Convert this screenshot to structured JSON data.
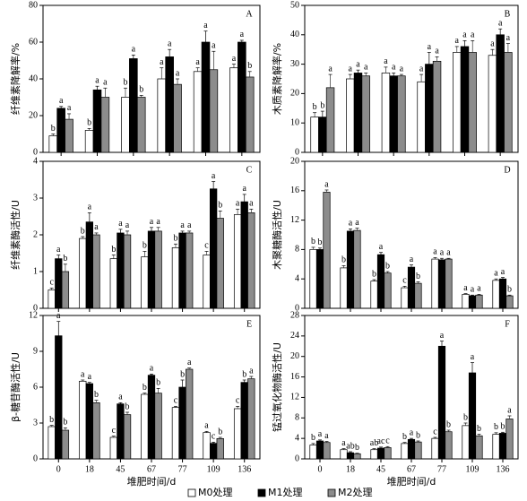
{
  "series_names": [
    "M0处理",
    "M1处理",
    "M2处理"
  ],
  "series_colors": [
    "#ffffff",
    "#000000",
    "#8c8c8c"
  ],
  "chart_data": [
    {
      "type": "bar",
      "panel": "A",
      "ylabel": "纤维素降解率/%",
      "ylim": [
        0,
        80
      ],
      "yticks": [
        0,
        20,
        40,
        60,
        80
      ],
      "categories": [
        null,
        null,
        null,
        null,
        null,
        null
      ],
      "series": [
        {
          "values": [
            9,
            12,
            30,
            40,
            44,
            46
          ],
          "errors": [
            1,
            1,
            5,
            6,
            2,
            2
          ],
          "letters": [
            "b",
            "b",
            "b",
            "a",
            "a",
            "a"
          ]
        },
        {
          "values": [
            24,
            34,
            51,
            52,
            60,
            60
          ],
          "errors": [
            1,
            2,
            2,
            4,
            6,
            1
          ],
          "letters": [
            "a",
            "a",
            "a",
            "a",
            "a",
            "a"
          ]
        },
        {
          "values": [
            18,
            30,
            30,
            37,
            45,
            41
          ],
          "errors": [
            3,
            5,
            1,
            3,
            10,
            3
          ],
          "letters": [
            "a",
            "a",
            "b",
            "a",
            "a",
            "b"
          ]
        }
      ]
    },
    {
      "type": "bar",
      "panel": "B",
      "ylabel": "木质素降解率/%",
      "ylim": [
        0,
        50
      ],
      "yticks": [
        0,
        10,
        20,
        30,
        40,
        50
      ],
      "categories": [
        null,
        null,
        null,
        null,
        null,
        null
      ],
      "series": [
        {
          "values": [
            12,
            25,
            27,
            24,
            34,
            33
          ],
          "errors": [
            1.5,
            1.5,
            2,
            2.5,
            2,
            2
          ],
          "letters": [
            "b",
            "a",
            "a",
            "a",
            "a",
            "a"
          ]
        },
        {
          "values": [
            12,
            27,
            26,
            30,
            36,
            40
          ],
          "errors": [
            2,
            1,
            1,
            4,
            2,
            2
          ],
          "letters": [
            "b",
            "a",
            "a",
            "a",
            "a",
            "a"
          ]
        },
        {
          "values": [
            22,
            26,
            26,
            31,
            34,
            34
          ],
          "errors": [
            4.5,
            1,
            0.5,
            1.5,
            4,
            3
          ],
          "letters": [
            "a",
            "a",
            "a",
            "a",
            "a",
            "a"
          ]
        }
      ]
    },
    {
      "type": "bar",
      "panel": "C",
      "ylabel": "纤维素酶活性/U",
      "ylim": [
        0,
        4
      ],
      "yticks": [
        0,
        1,
        2,
        3,
        4
      ],
      "categories": [
        null,
        null,
        null,
        null,
        null,
        null,
        null
      ],
      "series": [
        {
          "values": [
            0.5,
            1.9,
            1.35,
            1.4,
            1.65,
            1.45,
            2.55
          ],
          "errors": [
            0.05,
            0.05,
            0.1,
            0.15,
            0.1,
            0.1,
            0.15
          ],
          "letters": [
            "c",
            "b",
            "b",
            "b",
            "b",
            "c",
            "a"
          ]
        },
        {
          "values": [
            1.35,
            2.35,
            2.05,
            2.1,
            2.05,
            3.25,
            2.9
          ],
          "errors": [
            0.1,
            0.25,
            0.1,
            0.1,
            0.05,
            0.2,
            0.2
          ],
          "letters": [
            "a",
            "a",
            "a",
            "a",
            "a",
            "a",
            "a"
          ]
        },
        {
          "values": [
            1.0,
            2.0,
            2.0,
            2.1,
            2.05,
            2.45,
            2.6
          ],
          "errors": [
            0.2,
            0.05,
            0.1,
            0.1,
            0.05,
            0.2,
            0.1
          ],
          "letters": [
            "b",
            "a",
            "a",
            "a",
            "a",
            "b",
            "a"
          ]
        }
      ]
    },
    {
      "type": "bar",
      "panel": "D",
      "ylabel": "木聚糖酶活性/U",
      "ylim": [
        0,
        20
      ],
      "yticks": [
        0,
        4,
        8,
        12,
        16,
        20
      ],
      "categories": [
        null,
        null,
        null,
        null,
        null,
        null,
        null
      ],
      "series": [
        {
          "values": [
            8.0,
            5.5,
            3.7,
            2.8,
            6.7,
            1.9,
            3.8
          ],
          "errors": [
            0.3,
            0.3,
            0.2,
            0.2,
            0.2,
            0.1,
            0.2
          ],
          "letters": [
            "b",
            "b",
            "b",
            "c",
            "a",
            "a",
            "a"
          ]
        },
        {
          "values": [
            8.0,
            10.5,
            7.3,
            5.6,
            6.6,
            1.7,
            4.0
          ],
          "errors": [
            0.2,
            0.3,
            0.3,
            0.3,
            0.2,
            0.1,
            0.2
          ],
          "letters": [
            "b",
            "a",
            "a",
            "a",
            "a",
            "a",
            "a"
          ]
        },
        {
          "values": [
            15.8,
            10.6,
            4.8,
            3.4,
            6.7,
            1.8,
            1.7
          ],
          "errors": [
            0.3,
            0.3,
            0.2,
            0.2,
            0.1,
            0.1,
            0.1
          ],
          "letters": [
            "a",
            "a",
            "b",
            "b",
            "a",
            "a",
            "b"
          ]
        }
      ]
    },
    {
      "type": "bar",
      "panel": "E",
      "ylabel": "β-糖苷酶活性/U",
      "xlabel": "堆肥时间/d",
      "ylim": [
        0,
        12
      ],
      "yticks": [
        0,
        3,
        6,
        9,
        12
      ],
      "categories": [
        "0",
        "18",
        "45",
        "67",
        "77",
        "109",
        "136"
      ],
      "series": [
        {
          "values": [
            2.7,
            6.5,
            1.8,
            5.4,
            4.3,
            2.2,
            4.2
          ],
          "errors": [
            0.1,
            0.1,
            0.1,
            0.1,
            0.1,
            0.1,
            0.2
          ],
          "letters": [
            "b",
            "a",
            "c",
            "b",
            "c",
            "a",
            "c"
          ]
        },
        {
          "values": [
            10.3,
            6.3,
            4.6,
            7.0,
            6.0,
            1.3,
            6.4
          ],
          "errors": [
            1.2,
            0.1,
            0.1,
            0.1,
            0.6,
            0.1,
            0.2
          ],
          "letters": [
            "a",
            "a",
            "a",
            "a",
            "b",
            "c",
            "b"
          ]
        },
        {
          "values": [
            2.4,
            4.7,
            3.7,
            5.5,
            7.5,
            1.7,
            6.7
          ],
          "errors": [
            0.2,
            0.2,
            0.2,
            0.4,
            0.1,
            0.1,
            0.2
          ],
          "letters": [
            "b",
            "b",
            "b",
            "b",
            "a",
            "b",
            "a"
          ]
        }
      ]
    },
    {
      "type": "bar",
      "panel": "F",
      "ylabel": "锰过氧化物酶活性/U",
      "xlabel": "堆肥时间/d",
      "ylim": [
        0,
        28
      ],
      "yticks": [
        0,
        4,
        8,
        12,
        16,
        20,
        24,
        28
      ],
      "categories": [
        "0",
        "18",
        "45",
        "67",
        "77",
        "109",
        "136"
      ],
      "series": [
        {
          "values": [
            2.7,
            1.8,
            1.8,
            3.0,
            4.0,
            6.5,
            4.8
          ],
          "errors": [
            0.3,
            0.2,
            0.2,
            0.2,
            0.2,
            0.5,
            0.3
          ],
          "letters": [
            "b",
            "a",
            "ab",
            "b",
            "c",
            "b",
            "b"
          ]
        },
        {
          "values": [
            3.5,
            1.2,
            2.1,
            3.8,
            22.0,
            16.8,
            5.0
          ],
          "errors": [
            0.2,
            0.2,
            0.2,
            0.2,
            1.0,
            2.0,
            0.2
          ],
          "letters": [
            "a",
            "ab",
            "ac",
            "a",
            "a",
            "a",
            "b"
          ]
        },
        {
          "values": [
            3.2,
            1.0,
            2.2,
            3.3,
            5.3,
            4.5,
            7.8
          ],
          "errors": [
            0.2,
            0.1,
            0.2,
            0.2,
            0.3,
            0.3,
            0.6
          ],
          "letters": [
            "a",
            "b",
            "c",
            "b",
            "b",
            "b",
            "a"
          ]
        }
      ]
    }
  ]
}
